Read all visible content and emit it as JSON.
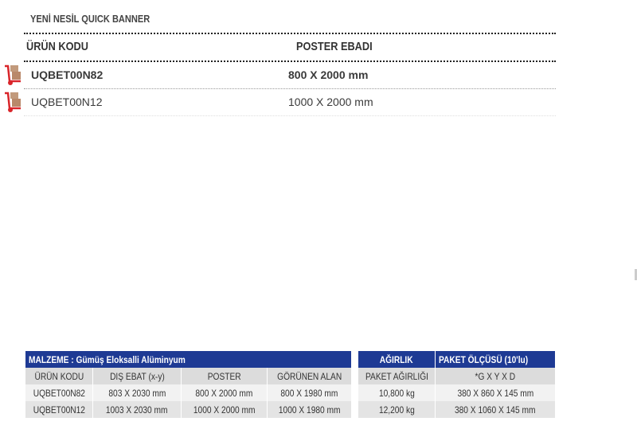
{
  "title": "YENİ NESİL QUICK BANNER",
  "list": {
    "headers": [
      "ÜRÜN KODU",
      "POSTER EBADI"
    ],
    "rows": [
      {
        "code": "UQBET00N82",
        "size": "800 X 2000 mm",
        "bold": true
      },
      {
        "code": "UQBET00N12",
        "size": "1000 X 2000 mm",
        "bold": false
      }
    ],
    "row_icon": "hand-truck-icon"
  },
  "spec_table": {
    "header": "MALZEME : Gümüş Eloksalli Alüminyum",
    "columns": [
      "ÜRÜN KODU",
      "DIŞ EBAT (x-y)",
      "POSTER",
      "GÖRÜNEN ALAN"
    ],
    "rows": [
      [
        "UQBET00N82",
        "803 X 2030 mm",
        "800 X 2000 mm",
        "800 X 1980 mm"
      ],
      [
        "UQBET00N12",
        "1003 X 2030 mm",
        "1000 X 2000 mm",
        "1000 X 1980 mm"
      ]
    ]
  },
  "package_table": {
    "headers": [
      "AĞIRLIK",
      "PAKET ÖLÇÜSÜ (10'lu)"
    ],
    "columns": [
      "PAKET AĞIRLIĞI",
      "*G X Y X D"
    ],
    "rows": [
      [
        "10,800 kg",
        "380 X 860 X 145 mm"
      ],
      [
        "12,200 kg",
        "380 X 1060 X 145 mm"
      ]
    ]
  },
  "colors": {
    "header_blue": "#1e3a94",
    "icon_red": "#d9252a",
    "box_brown": "#b9896a"
  }
}
